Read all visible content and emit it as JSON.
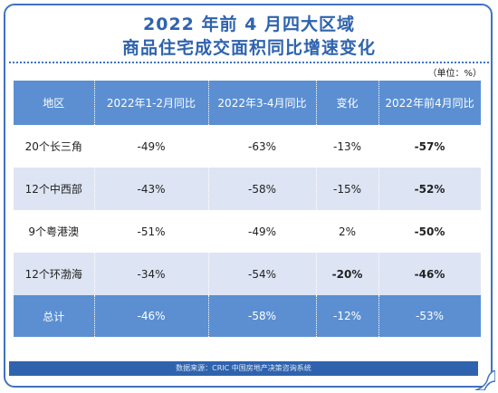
{
  "title_line1": "2022 年前 4 月四大区域",
  "title_line2": "商品住宅成交面积同比增速变化",
  "unit": "（单位：%）",
  "table": {
    "headers": [
      "地区",
      "2022年1-2月同比",
      "2022年3-4月同比",
      "变化",
      "2022年前4月同比"
    ],
    "rows": [
      [
        "20个长三角",
        "-49%",
        "-63%",
        "-13%",
        "-57%"
      ],
      [
        "12个中西部",
        "-43%",
        "-58%",
        "-15%",
        "-52%"
      ],
      [
        "9个粤港澳",
        "-51%",
        "-49%",
        "2%",
        "-50%"
      ],
      [
        "12个环渤海",
        "-34%",
        "-54%",
        "-20%",
        "-46%"
      ]
    ],
    "total": [
      "总计",
      "-46%",
      "-58%",
      "-12%",
      "-53%"
    ]
  },
  "footer": "数据来源：CRIC 中国房地产决策咨询系统",
  "colors": {
    "accent": "#2f63ae",
    "header_bg": "#5b8fd2",
    "stripe": "#dde5f4"
  }
}
